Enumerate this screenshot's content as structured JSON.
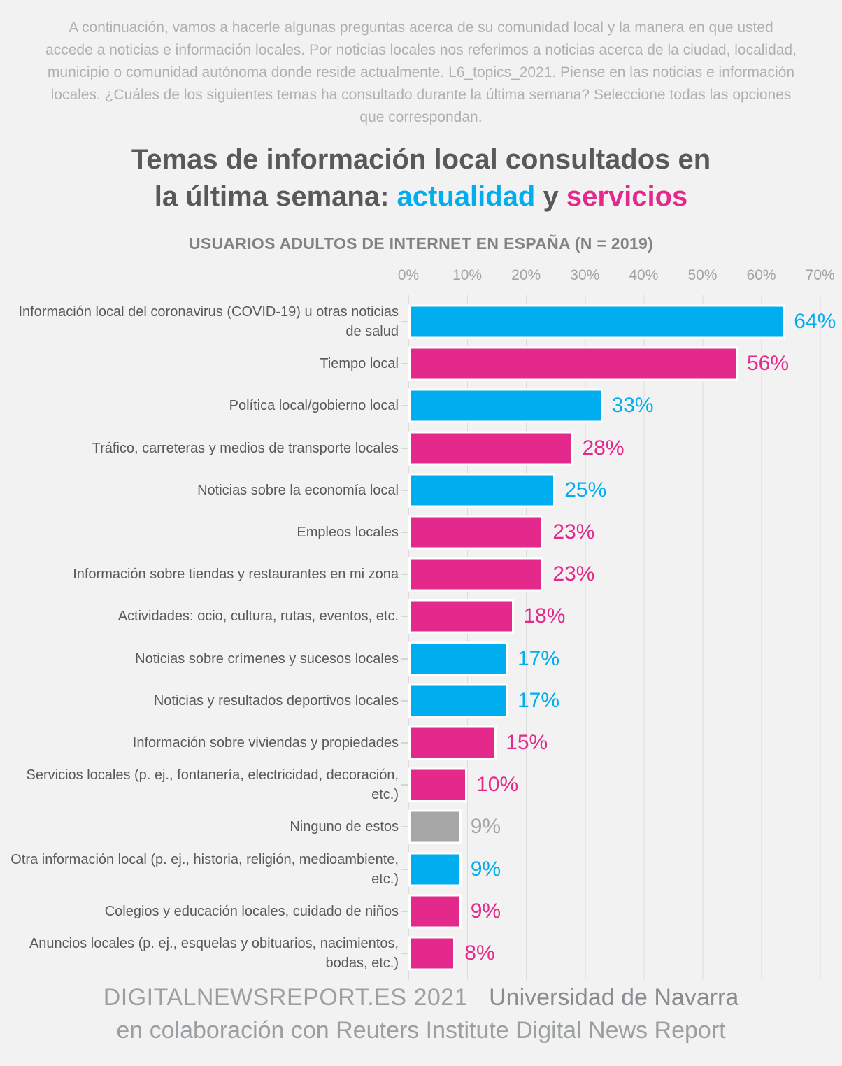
{
  "intro_text": "A continuación, vamos a hacerle algunas preguntas acerca de su comunidad local y la manera en que usted accede a noticias e información locales. Por noticias locales nos referimos a noticias acerca de la ciudad, localidad, municipio o comunidad autónoma donde reside actualmente. L6_topics_2021. Piense en las noticias e información locales. ¿Cuáles de los siguientes temas ha consultado durante la última semana? Seleccione todas las opciones que correspondan.",
  "title": {
    "line1": "Temas de información local consultados en",
    "line2_prefix": "la última semana: ",
    "line2_blue": "actualidad",
    "line2_mid": " y ",
    "line2_pink": "servicios"
  },
  "subtitle": "USUARIOS ADULTOS DE INTERNET EN ESPAÑA (N = 2019)",
  "footer": {
    "brand": "DIGITALNEWSREPORT.ES 2021",
    "org": "Universidad de Navarra",
    "collab": "en colaboración con Reuters Institute Digital News Report"
  },
  "chart_data": {
    "type": "bar",
    "orientation": "horizontal",
    "title": "Temas de información local consultados en la última semana: actualidad y servicios",
    "subtitle": "USUARIOS ADULTOS DE INTERNET EN ESPAÑA (N = 2019)",
    "xlabel": "",
    "ylabel": "",
    "xlim": [
      0,
      70
    ],
    "x_ticks": [
      "0%",
      "10%",
      "20%",
      "30%",
      "40%",
      "50%",
      "60%",
      "70%"
    ],
    "grid": "vertical",
    "legend": "none",
    "value_suffix": "%",
    "colors": {
      "blue": "#00aeef",
      "pink": "#e3298c",
      "gray": "#a6a6a6"
    },
    "rows": [
      {
        "label": "Información local del coronavirus (COVID-19) u otras noticias de salud",
        "value": 64,
        "color": "blue"
      },
      {
        "label": "Tiempo local",
        "value": 56,
        "color": "pink"
      },
      {
        "label": "Política local/gobierno local",
        "value": 33,
        "color": "blue"
      },
      {
        "label": "Tráfico, carreteras y medios de transporte locales",
        "value": 28,
        "color": "pink"
      },
      {
        "label": "Noticias sobre la economía local",
        "value": 25,
        "color": "blue"
      },
      {
        "label": "Empleos locales",
        "value": 23,
        "color": "pink"
      },
      {
        "label": "Información sobre tiendas y restaurantes en mi zona",
        "value": 23,
        "color": "pink"
      },
      {
        "label": "Actividades: ocio, cultura, rutas, eventos, etc.",
        "value": 18,
        "color": "pink"
      },
      {
        "label": "Noticias sobre crímenes y sucesos locales",
        "value": 17,
        "color": "blue"
      },
      {
        "label": "Noticias y resultados deportivos locales",
        "value": 17,
        "color": "blue"
      },
      {
        "label": "Información sobre viviendas y propiedades",
        "value": 15,
        "color": "pink"
      },
      {
        "label": "Servicios locales (p. ej., fontanería, electricidad, decoración, etc.)",
        "value": 10,
        "color": "pink"
      },
      {
        "label": "Ninguno de estos",
        "value": 9,
        "color": "gray"
      },
      {
        "label": "Otra información local (p. ej., historia, religión, medioambiente, etc.)",
        "value": 9,
        "color": "blue"
      },
      {
        "label": "Colegios y educación locales, cuidado de niños",
        "value": 9,
        "color": "pink"
      },
      {
        "label": "Anuncios locales (p. ej., esquelas y obituarios, nacimientos, bodas, etc.)",
        "value": 8,
        "color": "pink"
      }
    ]
  }
}
